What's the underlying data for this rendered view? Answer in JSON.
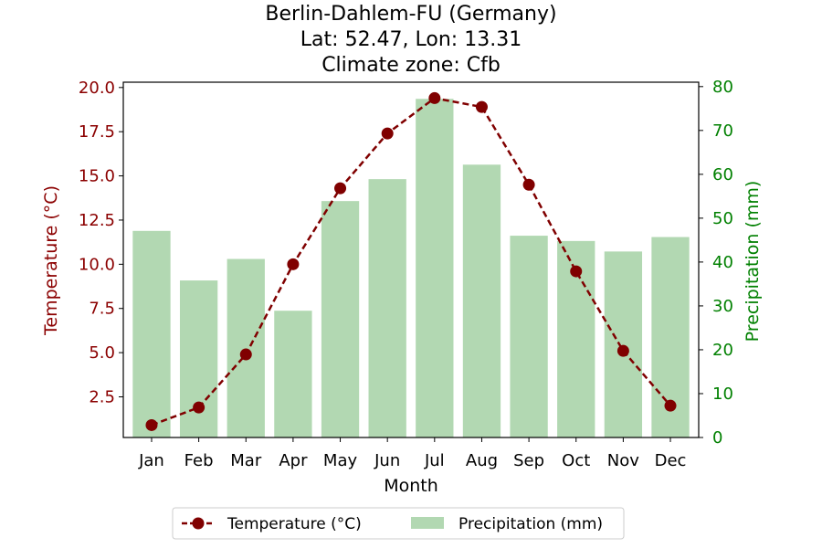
{
  "chart_data": {
    "type": "bar+line",
    "title_lines": [
      "Berlin-Dahlem-FU (Germany)",
      "Lat: 52.47, Lon: 13.31",
      "Climate zone: Cfb"
    ],
    "xlabel": "Month",
    "ylabel_left": "Temperature (°C)",
    "ylabel_right": "Precipitation (mm)",
    "categories": [
      "Jan",
      "Feb",
      "Mar",
      "Apr",
      "May",
      "Jun",
      "Jul",
      "Aug",
      "Sep",
      "Oct",
      "Nov",
      "Dec"
    ],
    "temperature": {
      "name": "Temperature (°C)",
      "color": "#800000",
      "values": [
        0.9,
        1.9,
        4.9,
        10.0,
        14.3,
        17.4,
        19.4,
        18.9,
        14.5,
        9.6,
        5.1,
        2.0
      ]
    },
    "precipitation": {
      "name": "Precipitation (mm)",
      "color": "#b2d8b2",
      "values": [
        47.1,
        35.8,
        40.7,
        28.9,
        53.9,
        58.9,
        77.2,
        62.2,
        46.0,
        44.8,
        42.4,
        45.7
      ]
    },
    "ylim_left": [
      0.2,
      20.3
    ],
    "ylim_right": [
      0,
      81
    ],
    "yticks_left": [
      "2.5",
      "5.0",
      "7.5",
      "10.0",
      "12.5",
      "15.0",
      "17.5",
      "20.0"
    ],
    "yticks_right": [
      "0",
      "10",
      "20",
      "30",
      "40",
      "50",
      "60",
      "70",
      "80"
    ],
    "left_axis_color": "#8b0000",
    "right_axis_color": "#008000",
    "legend_position": "bottom-center",
    "grid": false
  }
}
